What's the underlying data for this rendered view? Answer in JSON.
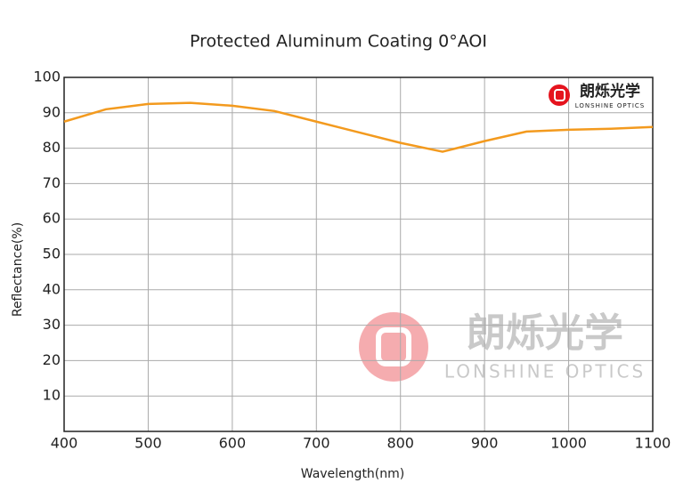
{
  "chart_data": {
    "type": "line",
    "title": "Protected Aluminum Coating 0°AOI",
    "x_label": "Wavelength(nm)",
    "y_label": "Reflectance(%)",
    "x": [
      400,
      450,
      500,
      550,
      600,
      650,
      700,
      750,
      800,
      850,
      900,
      950,
      1000,
      1050,
      1100
    ],
    "series": [
      {
        "name": "Reflectance",
        "color": "#f39a1e",
        "values": [
          87.5,
          91,
          92.5,
          92.8,
          92,
          90.5,
          87.5,
          84.5,
          81.5,
          79,
          82,
          84.7,
          85.2,
          85.5,
          86
        ]
      }
    ],
    "xlim": [
      400,
      1100
    ],
    "xticks": [
      400,
      500,
      600,
      700,
      800,
      900,
      1000,
      1100
    ],
    "ylim": [
      0,
      100
    ],
    "yticks": [
      10,
      20,
      30,
      40,
      50,
      60,
      70,
      80,
      90,
      100
    ],
    "grid": true,
    "logo": {
      "name": "朗烁光学",
      "subtitle": "LONSHINE OPTICS"
    }
  }
}
